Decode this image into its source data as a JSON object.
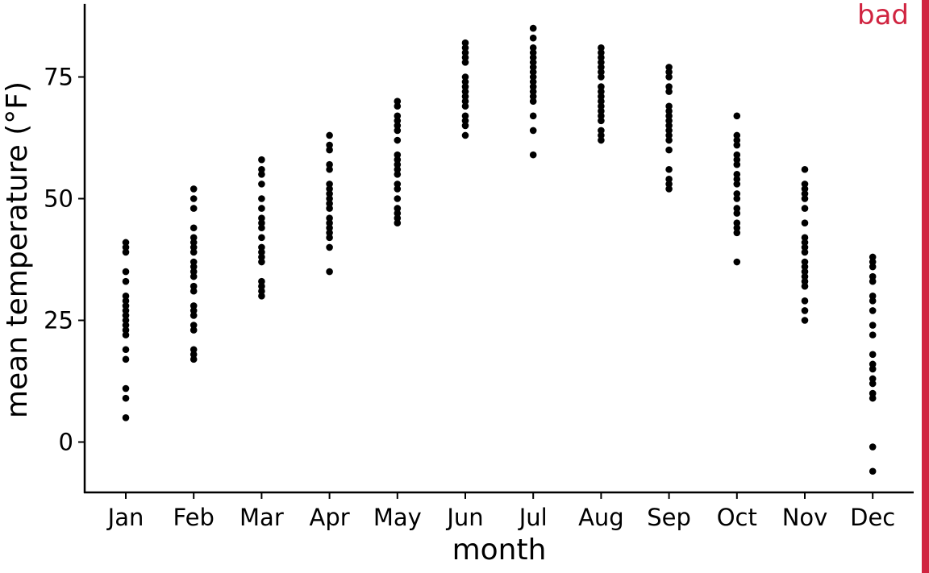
{
  "badge": {
    "label": "bad",
    "color": "#d02440"
  },
  "chart_data": {
    "type": "scatter",
    "title": "",
    "xlabel": "month",
    "ylabel": "mean temperature (°F)",
    "ylim": [
      -10.5,
      90
    ],
    "yticks": [
      0,
      25,
      50,
      75
    ],
    "grid": false,
    "legend": "none",
    "point_color": "#000000",
    "categories": [
      "Jan",
      "Feb",
      "Mar",
      "Apr",
      "May",
      "Jun",
      "Jul",
      "Aug",
      "Sep",
      "Oct",
      "Nov",
      "Dec"
    ],
    "values": [
      [
        41,
        40,
        39,
        35,
        33,
        30,
        29,
        28,
        27,
        26,
        25,
        24,
        23,
        22,
        19,
        17,
        11,
        9,
        5
      ],
      [
        52,
        50,
        48,
        44,
        42,
        41,
        40,
        39,
        37,
        36,
        35,
        34,
        32,
        31,
        28,
        27,
        26,
        24,
        23,
        19,
        18,
        17
      ],
      [
        58,
        56,
        55,
        53,
        50,
        48,
        46,
        45,
        44,
        42,
        40,
        39,
        38,
        37,
        33,
        32,
        31,
        30
      ],
      [
        63,
        61,
        60,
        57,
        56,
        53,
        52,
        51,
        50,
        49,
        48,
        46,
        45,
        44,
        43,
        42,
        40,
        35
      ],
      [
        70,
        69,
        67,
        66,
        65,
        64,
        62,
        59,
        58,
        57,
        56,
        55,
        53,
        52,
        50,
        48,
        47,
        46,
        45
      ],
      [
        82,
        81,
        80,
        79,
        78,
        75,
        74,
        73,
        72,
        71,
        70,
        69,
        67,
        66,
        65,
        63
      ],
      [
        85,
        83,
        81,
        80,
        79,
        78,
        77,
        76,
        75,
        74,
        73,
        72,
        71,
        70,
        67,
        64,
        59
      ],
      [
        81,
        80,
        79,
        78,
        77,
        76,
        75,
        73,
        72,
        71,
        70,
        69,
        68,
        67,
        66,
        64,
        63,
        62
      ],
      [
        77,
        76,
        75,
        73,
        72,
        69,
        68,
        67,
        66,
        65,
        64,
        63,
        62,
        60,
        56,
        54,
        53,
        52
      ],
      [
        67,
        63,
        62,
        61,
        59,
        58,
        57,
        55,
        54,
        53,
        51,
        50,
        48,
        47,
        45,
        44,
        43,
        37
      ],
      [
        56,
        53,
        52,
        51,
        50,
        48,
        45,
        42,
        41,
        40,
        39,
        37,
        36,
        35,
        34,
        33,
        32,
        29,
        27,
        25
      ],
      [
        38,
        37,
        36,
        34,
        33,
        30,
        29,
        27,
        24,
        22,
        18,
        16,
        15,
        13,
        12,
        10,
        9,
        -1,
        -6
      ]
    ]
  }
}
